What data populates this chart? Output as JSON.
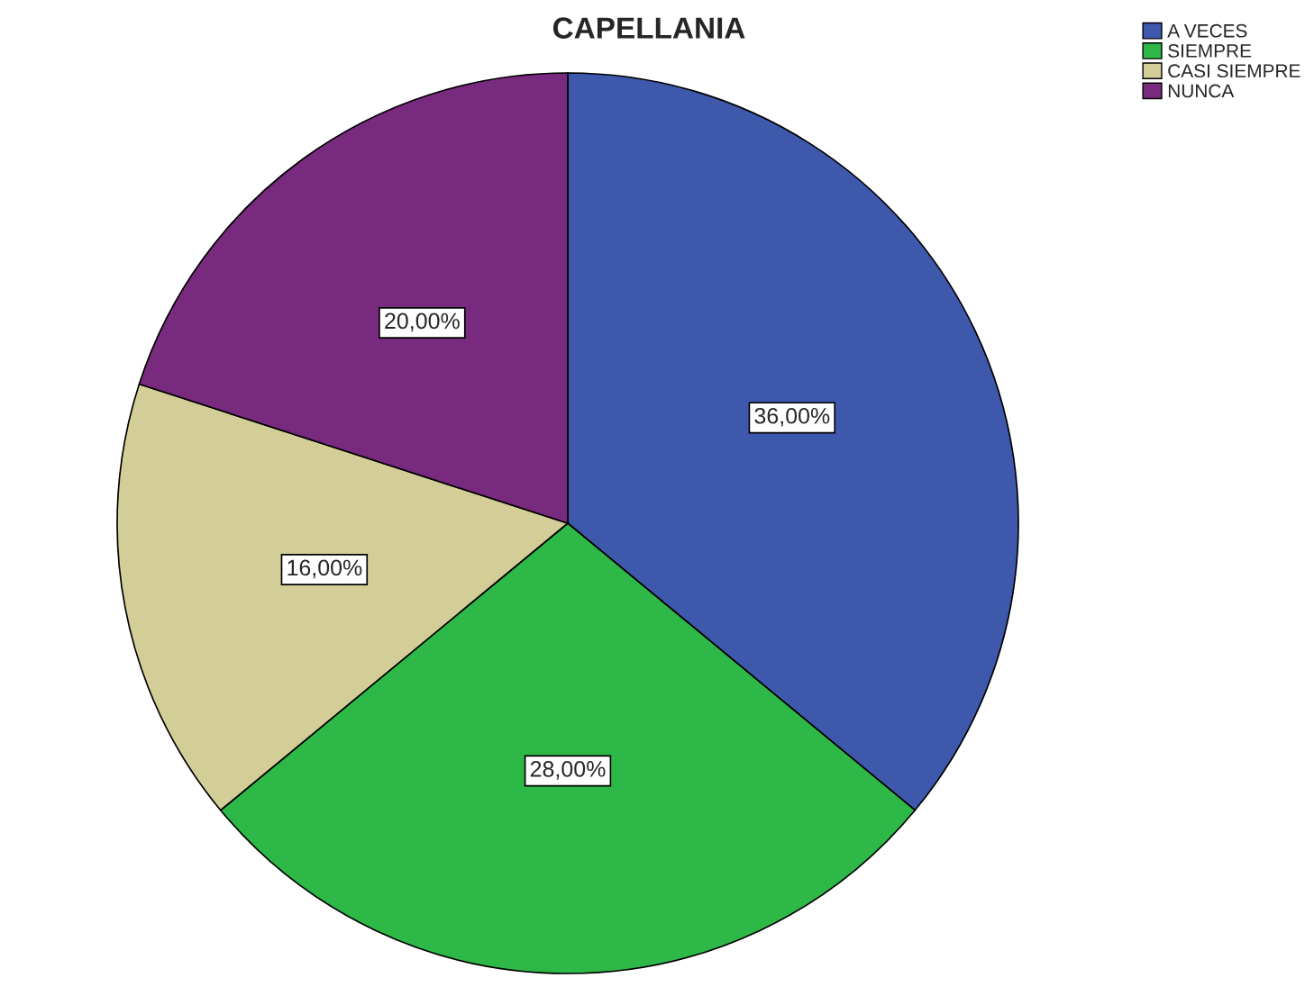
{
  "chart_data": {
    "type": "pie",
    "title": "CAPELLANIA",
    "categories": [
      "A VECES",
      "SIEMPRE",
      "CASI SIEMPRE",
      "NUNCA"
    ],
    "values": [
      36,
      28,
      16,
      20
    ],
    "colors": [
      "#3e58ac",
      "#2eb848",
      "#d3ce97",
      "#782a7e"
    ],
    "value_labels": [
      "36,00%",
      "28,00%",
      "16,00%",
      "20,00%"
    ],
    "legend": "top right"
  }
}
